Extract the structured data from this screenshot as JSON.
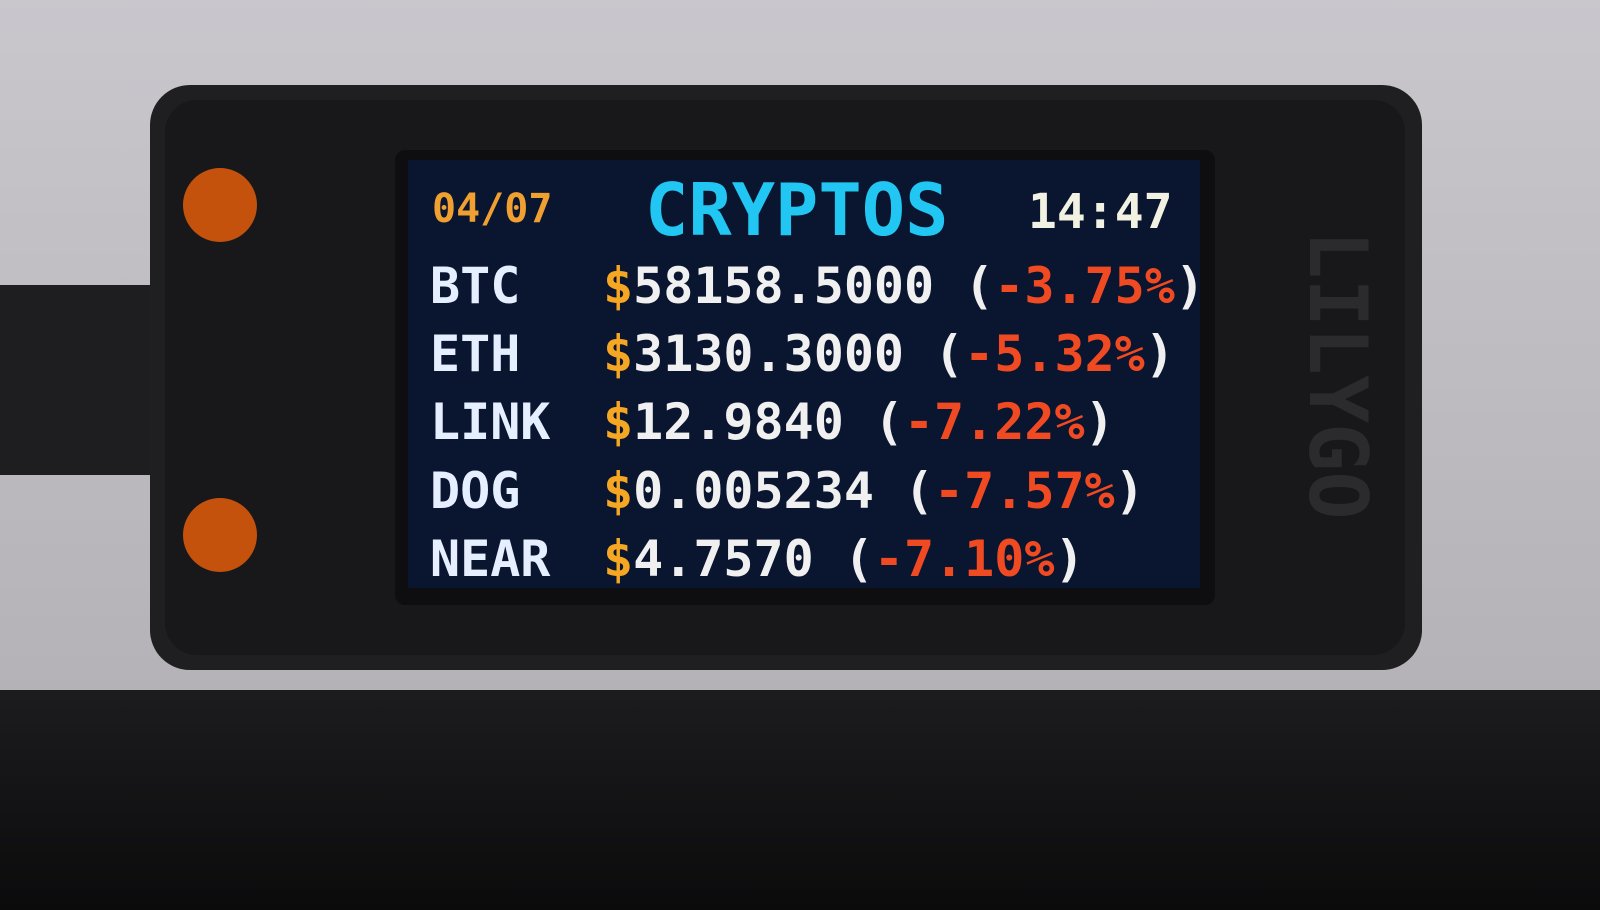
{
  "brand": "LILYGO",
  "header": {
    "date": "04/07",
    "title": "CRYPTOS",
    "time": "14:47"
  },
  "currency_symbol": "$",
  "brackets": [
    "(",
    ")"
  ],
  "rows": [
    {
      "symbol": "BTC",
      "price": "58158.5000",
      "change": "-3.75%"
    },
    {
      "symbol": "ETH",
      "price": "3130.3000",
      "change": "-5.32%"
    },
    {
      "symbol": "LINK",
      "price": "12.9840",
      "change": "-7.22%"
    },
    {
      "symbol": "DOG",
      "price": "0.005234",
      "change": "-7.57%"
    },
    {
      "symbol": "NEAR",
      "price": "4.7570",
      "change": "-7.10%"
    }
  ]
}
